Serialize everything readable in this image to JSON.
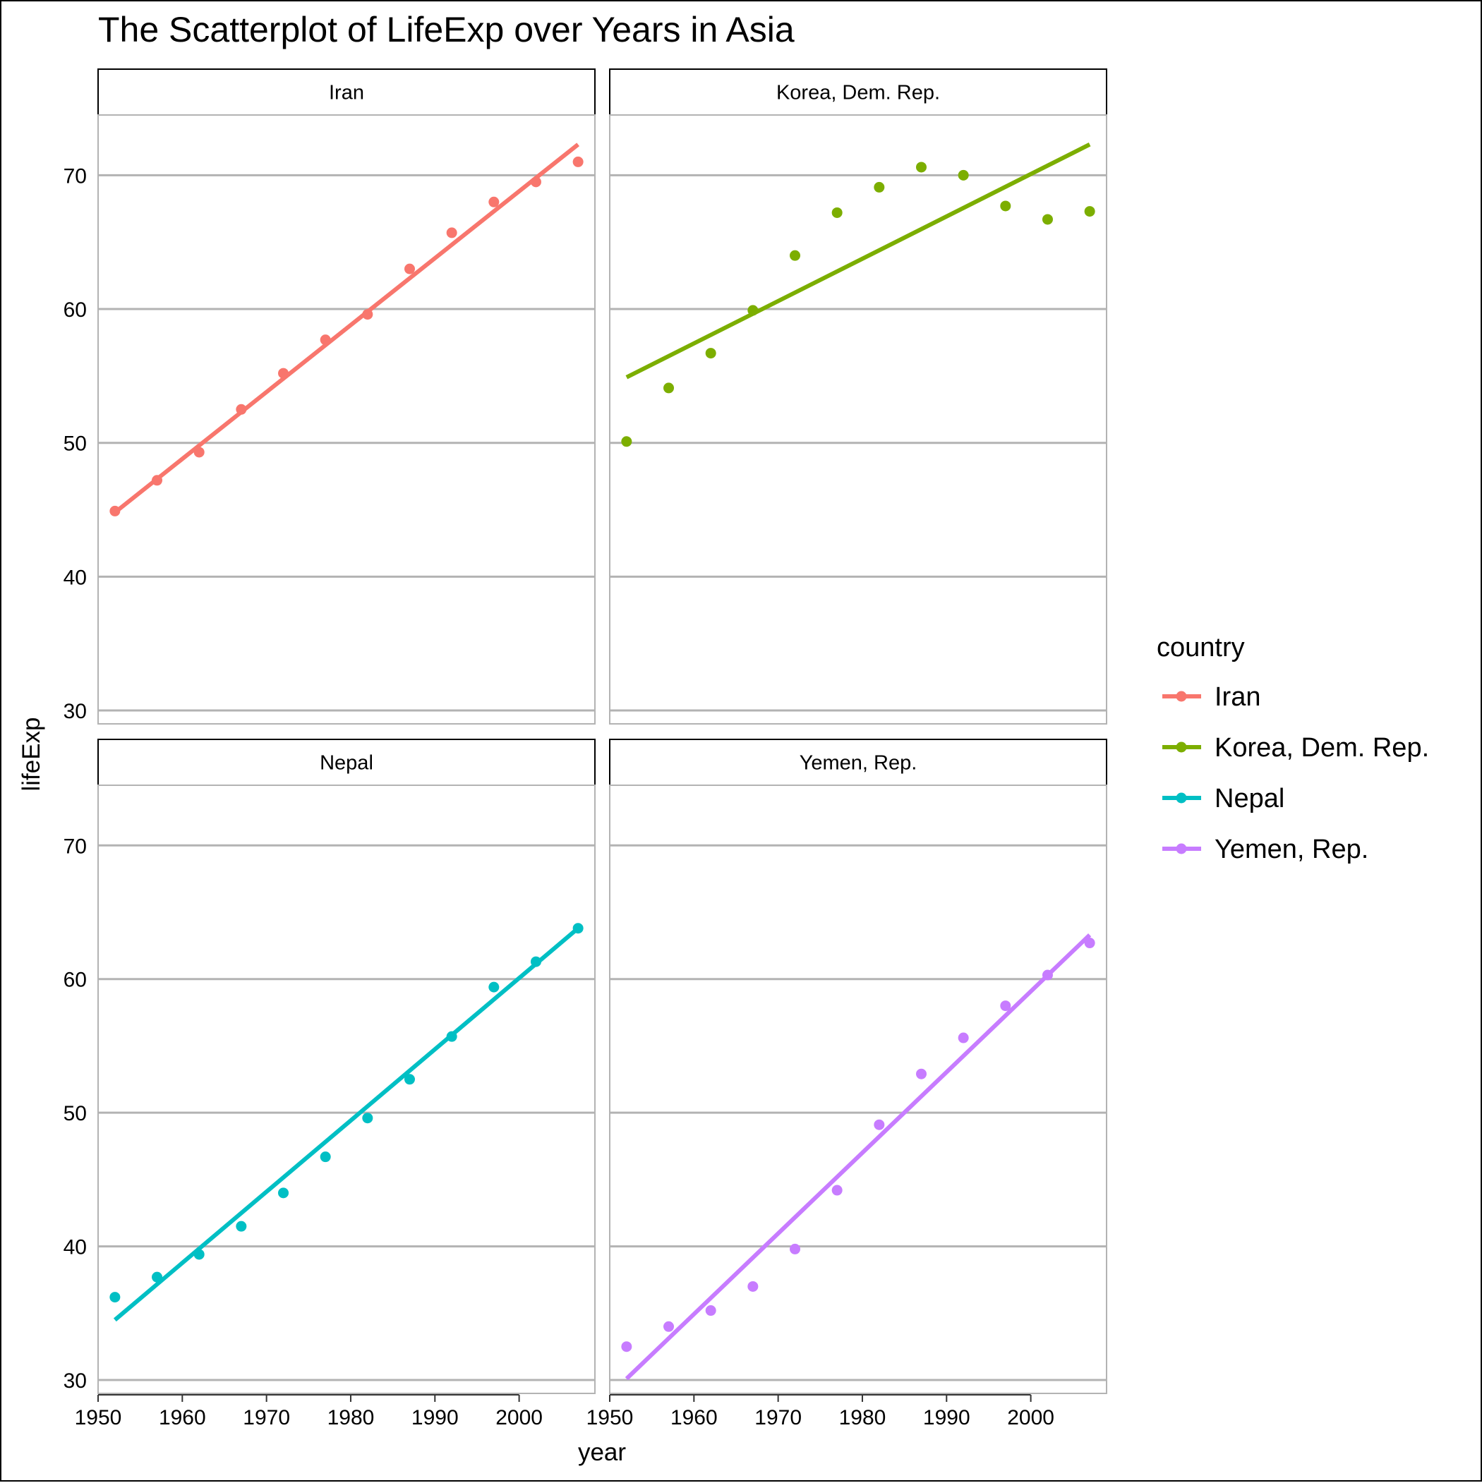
{
  "chart_data": {
    "type": "scatter",
    "title": "The Scatterplot of LifeExp over Years in Asia",
    "xlabel": "year",
    "ylabel": "lifeExp",
    "xlim": [
      1950,
      2009
    ],
    "ylim": [
      29,
      74.5
    ],
    "x_ticks": [
      1950,
      1960,
      1970,
      1980,
      1990,
      2000
    ],
    "y_ticks": [
      30,
      40,
      50,
      60,
      70
    ],
    "grid": "horizontal major",
    "legend": {
      "title": "country",
      "placement": "right"
    },
    "facet_layout": "2x2",
    "series": [
      {
        "name": "Iran",
        "color": "#F8766D",
        "x": [
          1952,
          1957,
          1962,
          1967,
          1972,
          1977,
          1982,
          1987,
          1992,
          1997,
          2002,
          2007
        ],
        "y": [
          44.9,
          47.2,
          49.3,
          52.5,
          55.2,
          57.7,
          59.6,
          63.0,
          65.7,
          68.0,
          69.5,
          71.0
        ],
        "fit": {
          "x": [
            1952,
            2007
          ],
          "y": [
            44.8,
            72.3
          ]
        }
      },
      {
        "name": "Korea, Dem. Rep.",
        "color": "#7CAE00",
        "x": [
          1952,
          1957,
          1962,
          1967,
          1972,
          1977,
          1982,
          1987,
          1992,
          1997,
          2002,
          2007
        ],
        "y": [
          50.1,
          54.1,
          56.7,
          59.9,
          64.0,
          67.2,
          69.1,
          70.6,
          70.0,
          67.7,
          66.7,
          67.3
        ],
        "fit": {
          "x": [
            1952,
            2007
          ],
          "y": [
            54.9,
            72.3
          ]
        }
      },
      {
        "name": "Nepal",
        "color": "#00BFC4",
        "x": [
          1952,
          1957,
          1962,
          1967,
          1972,
          1977,
          1982,
          1987,
          1992,
          1997,
          2002,
          2007
        ],
        "y": [
          36.2,
          37.7,
          39.4,
          41.5,
          44.0,
          46.7,
          49.6,
          52.5,
          55.7,
          59.4,
          61.3,
          63.8
        ],
        "fit": {
          "x": [
            1952,
            2007
          ],
          "y": [
            34.5,
            63.8
          ]
        }
      },
      {
        "name": "Yemen, Rep.",
        "color": "#C77CFF",
        "x": [
          1952,
          1957,
          1962,
          1967,
          1972,
          1977,
          1982,
          1987,
          1992,
          1997,
          2002,
          2007
        ],
        "y": [
          32.5,
          34.0,
          35.2,
          37.0,
          39.8,
          44.2,
          49.1,
          52.9,
          55.6,
          58.0,
          60.3,
          62.7
        ],
        "fit": {
          "x": [
            1952,
            2007
          ],
          "y": [
            30.1,
            63.3
          ]
        }
      }
    ]
  }
}
